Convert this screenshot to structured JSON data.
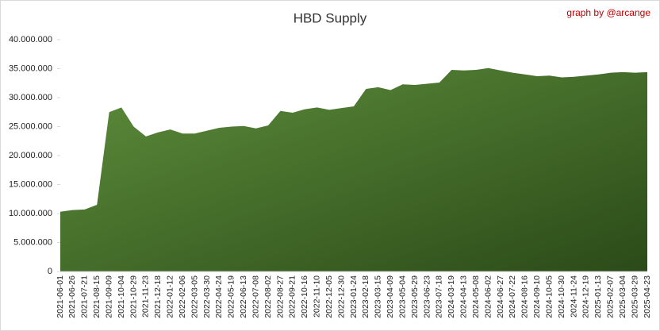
{
  "chart_data": {
    "type": "area",
    "title": "HBD Supply",
    "annotation": "graph by @arcange",
    "colors": [
      "#5e8f3c",
      "#2b4a18"
    ],
    "categories": [
      "2021-06-01",
      "2021-06-26",
      "2021-07-21",
      "2021-08-15",
      "2021-09-09",
      "2021-10-04",
      "2021-10-29",
      "2021-11-23",
      "2021-12-18",
      "2022-01-12",
      "2022-02-06",
      "2022-03-05",
      "2022-03-30",
      "2022-04-24",
      "2022-05-19",
      "2022-06-13",
      "2022-07-08",
      "2022-08-02",
      "2022-08-27",
      "2022-09-21",
      "2022-10-16",
      "2022-11-10",
      "2022-12-05",
      "2022-12-30",
      "2023-01-24",
      "2023-02-18",
      "2023-03-15",
      "2023-04-09",
      "2023-05-04",
      "2023-05-29",
      "2023-06-23",
      "2023-07-18",
      "2024-03-19",
      "2024-04-13",
      "2024-05-08",
      "2024-06-02",
      "2024-06-27",
      "2024-07-22",
      "2024-08-16",
      "2024-09-10",
      "2024-10-05",
      "2024-10-30",
      "2024-11-24",
      "2024-12-19",
      "2025-01-13",
      "2025-02-07",
      "2025-03-04",
      "2025-03-29",
      "2025-04-23"
    ],
    "values": [
      10300000,
      10600000,
      10700000,
      11500000,
      27500000,
      28300000,
      25000000,
      23300000,
      24000000,
      24500000,
      23800000,
      23800000,
      24300000,
      24800000,
      25000000,
      25100000,
      24700000,
      25200000,
      27700000,
      27400000,
      28000000,
      28300000,
      27900000,
      28200000,
      28500000,
      31500000,
      31800000,
      31300000,
      32300000,
      32200000,
      32400000,
      32600000,
      34800000,
      34700000,
      34800000,
      35100000,
      34700000,
      34300000,
      34000000,
      33700000,
      33800000,
      33500000,
      33600000,
      33800000,
      34000000,
      34300000,
      34400000,
      34300000,
      34400000
    ],
    "ylim": [
      0,
      40000000
    ],
    "yticks": [
      0,
      {
        "value": 5000000,
        "label": "5.000.000"
      },
      {
        "value": 10000000,
        "label": "10.000.000"
      },
      {
        "value": 15000000,
        "label": "15.000.000"
      },
      {
        "value": 20000000,
        "label": "20.000.000"
      },
      {
        "value": 25000000,
        "label": "25.000.000"
      },
      {
        "value": 30000000,
        "label": "30.000.000"
      },
      {
        "value": 35000000,
        "label": "35.000.000"
      },
      {
        "value": 40000000,
        "label": "40.000.000"
      }
    ]
  }
}
